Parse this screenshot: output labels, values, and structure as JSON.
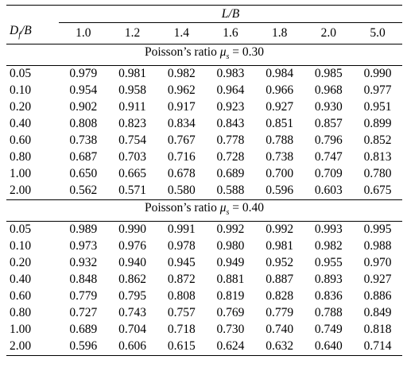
{
  "header": {
    "group_label": "L/B",
    "row_label_main": "D",
    "row_label_sub": "f",
    "row_label_tail": "/B",
    "columns": [
      "1.0",
      "1.2",
      "1.4",
      "1.6",
      "1.8",
      "2.0",
      "5.0"
    ]
  },
  "sections": [
    {
      "label_prefix": "Poisson’s ratio ",
      "mu": "μ",
      "mu_sub": "s",
      "label_value": " = 0.30",
      "rows": [
        {
          "df": "0.05",
          "values": [
            "0.979",
            "0.981",
            "0.982",
            "0.983",
            "0.984",
            "0.985",
            "0.990"
          ]
        },
        {
          "df": "0.10",
          "values": [
            "0.954",
            "0.958",
            "0.962",
            "0.964",
            "0.966",
            "0.968",
            "0.977"
          ]
        },
        {
          "df": "0.20",
          "values": [
            "0.902",
            "0.911",
            "0.917",
            "0.923",
            "0.927",
            "0.930",
            "0.951"
          ]
        },
        {
          "df": "0.40",
          "values": [
            "0.808",
            "0.823",
            "0.834",
            "0.843",
            "0.851",
            "0.857",
            "0.899"
          ]
        },
        {
          "df": "0.60",
          "values": [
            "0.738",
            "0.754",
            "0.767",
            "0.778",
            "0.788",
            "0.796",
            "0.852"
          ]
        },
        {
          "df": "0.80",
          "values": [
            "0.687",
            "0.703",
            "0.716",
            "0.728",
            "0.738",
            "0.747",
            "0.813"
          ]
        },
        {
          "df": "1.00",
          "values": [
            "0.650",
            "0.665",
            "0.678",
            "0.689",
            "0.700",
            "0.709",
            "0.780"
          ]
        },
        {
          "df": "2.00",
          "values": [
            "0.562",
            "0.571",
            "0.580",
            "0.588",
            "0.596",
            "0.603",
            "0.675"
          ]
        }
      ]
    },
    {
      "label_prefix": "Poisson’s ratio ",
      "mu": "μ",
      "mu_sub": "s",
      "label_value": " = 0.40",
      "rows": [
        {
          "df": "0.05",
          "values": [
            "0.989",
            "0.990",
            "0.991",
            "0.992",
            "0.992",
            "0.993",
            "0.995"
          ]
        },
        {
          "df": "0.10",
          "values": [
            "0.973",
            "0.976",
            "0.978",
            "0.980",
            "0.981",
            "0.982",
            "0.988"
          ]
        },
        {
          "df": "0.20",
          "values": [
            "0.932",
            "0.940",
            "0.945",
            "0.949",
            "0.952",
            "0.955",
            "0.970"
          ]
        },
        {
          "df": "0.40",
          "values": [
            "0.848",
            "0.862",
            "0.872",
            "0.881",
            "0.887",
            "0.893",
            "0.927"
          ]
        },
        {
          "df": "0.60",
          "values": [
            "0.779",
            "0.795",
            "0.808",
            "0.819",
            "0.828",
            "0.836",
            "0.886"
          ]
        },
        {
          "df": "0.80",
          "values": [
            "0.727",
            "0.743",
            "0.757",
            "0.769",
            "0.779",
            "0.788",
            "0.849"
          ]
        },
        {
          "df": "1.00",
          "values": [
            "0.689",
            "0.704",
            "0.718",
            "0.730",
            "0.740",
            "0.749",
            "0.818"
          ]
        },
        {
          "df": "2.00",
          "values": [
            "0.596",
            "0.606",
            "0.615",
            "0.624",
            "0.632",
            "0.640",
            "0.714"
          ]
        }
      ]
    }
  ]
}
